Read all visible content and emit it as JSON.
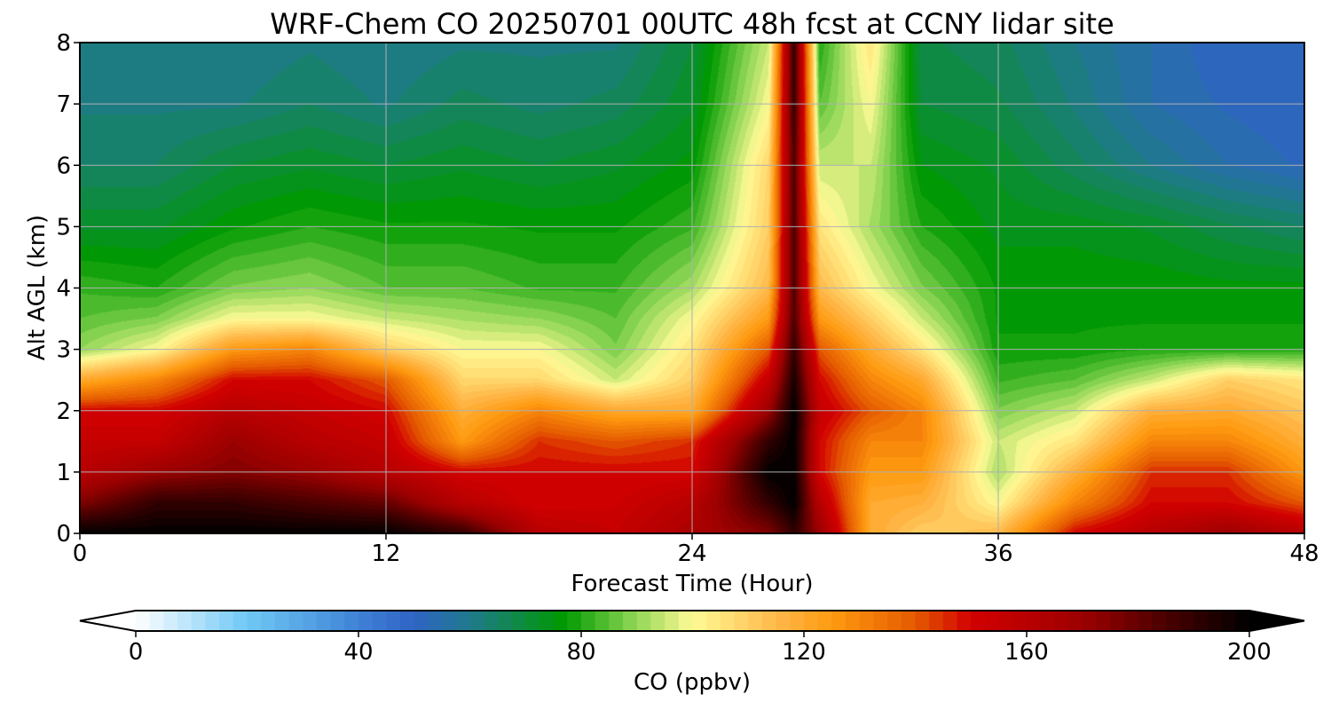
{
  "chart_data": {
    "type": "heatmap",
    "title": "WRF-Chem CO  20250701 00UTC 48h fcst at CCNY lidar site",
    "xlabel": "Forecast Time (Hour)",
    "ylabel": "Alt AGL (km)",
    "xlim": [
      0,
      48
    ],
    "ylim": [
      0,
      8
    ],
    "xticks": [
      0,
      12,
      24,
      36,
      48
    ],
    "yticks": [
      0,
      1,
      2,
      3,
      4,
      5,
      6,
      7,
      8
    ],
    "grid": true,
    "colorbar": {
      "label": "CO  (ppbv)",
      "min": 0,
      "max": 200,
      "ticks": [
        0,
        40,
        80,
        120,
        160,
        200
      ],
      "extend": "both",
      "levels": 80,
      "colormap": [
        {
          "v": 0,
          "c": "#ffffff"
        },
        {
          "v": 20,
          "c": "#6fc8f5"
        },
        {
          "v": 40,
          "c": "#3f82d6"
        },
        {
          "v": 50,
          "c": "#2f63c4"
        },
        {
          "v": 60,
          "c": "#1f7a8c"
        },
        {
          "v": 77,
          "c": "#009900"
        },
        {
          "v": 88,
          "c": "#7ccf4a"
        },
        {
          "v": 100,
          "c": "#fffa96"
        },
        {
          "v": 115,
          "c": "#ffb84a"
        },
        {
          "v": 125,
          "c": "#ff9a10"
        },
        {
          "v": 140,
          "c": "#e45a00"
        },
        {
          "v": 150,
          "c": "#d20000"
        },
        {
          "v": 170,
          "c": "#9c0000"
        },
        {
          "v": 185,
          "c": "#4a0000"
        },
        {
          "v": 200,
          "c": "#000000"
        }
      ]
    },
    "heights_km": [
      0,
      0.5,
      1,
      1.5,
      2,
      2.5,
      3,
      3.5,
      4,
      5,
      6,
      7,
      8
    ],
    "times_h": [
      0,
      3,
      6,
      9,
      12,
      15,
      18,
      21,
      24,
      27,
      28,
      29,
      31,
      33,
      36,
      39,
      42,
      45,
      48
    ],
    "values_ppbv": [
      [
        200,
        175,
        160,
        155,
        150,
        120,
        90,
        85,
        82,
        72,
        65,
        62,
        60
      ],
      [
        200,
        190,
        170,
        155,
        150,
        130,
        100,
        88,
        80,
        72,
        65,
        62,
        60
      ],
      [
        200,
        190,
        175,
        170,
        160,
        150,
        125,
        100,
        88,
        77,
        70,
        62,
        60
      ],
      [
        200,
        185,
        170,
        160,
        155,
        150,
        130,
        100,
        90,
        80,
        72,
        65,
        62
      ],
      [
        200,
        180,
        160,
        155,
        150,
        140,
        110,
        95,
        85,
        78,
        70,
        62,
        60
      ],
      [
        190,
        160,
        150,
        125,
        118,
        108,
        100,
        92,
        85,
        78,
        72,
        66,
        62
      ],
      [
        160,
        150,
        150,
        145,
        130,
        108,
        100,
        90,
        82,
        77,
        70,
        64,
        62
      ],
      [
        155,
        152,
        150,
        140,
        120,
        95,
        88,
        85,
        82,
        77,
        72,
        66,
        62
      ],
      [
        165,
        160,
        150,
        145,
        120,
        110,
        105,
        100,
        92,
        82,
        76,
        72,
        70
      ],
      [
        175,
        190,
        200,
        190,
        170,
        155,
        140,
        125,
        115,
        110,
        108,
        100,
        95
      ],
      [
        190,
        200,
        200,
        200,
        200,
        195,
        190,
        185,
        185,
        185,
        185,
        190,
        190
      ],
      [
        170,
        160,
        150,
        150,
        155,
        150,
        140,
        125,
        115,
        105,
        95,
        85,
        80
      ],
      [
        120,
        120,
        125,
        130,
        140,
        130,
        120,
        110,
        100,
        92,
        95,
        100,
        105
      ],
      [
        110,
        118,
        125,
        130,
        130,
        120,
        105,
        95,
        88,
        80,
        75,
        70,
        68
      ],
      [
        115,
        100,
        92,
        95,
        88,
        82,
        78,
        77,
        77,
        74,
        72,
        68,
        66
      ],
      [
        150,
        130,
        118,
        105,
        95,
        85,
        78,
        77,
        77,
        74,
        66,
        62,
        60
      ],
      [
        160,
        150,
        145,
        130,
        118,
        95,
        80,
        77,
        77,
        72,
        60,
        55,
        55
      ],
      [
        170,
        150,
        145,
        130,
        120,
        110,
        80,
        77,
        76,
        68,
        55,
        52,
        50
      ],
      [
        160,
        140,
        125,
        118,
        112,
        105,
        80,
        77,
        76,
        65,
        52,
        50,
        50
      ]
    ]
  }
}
